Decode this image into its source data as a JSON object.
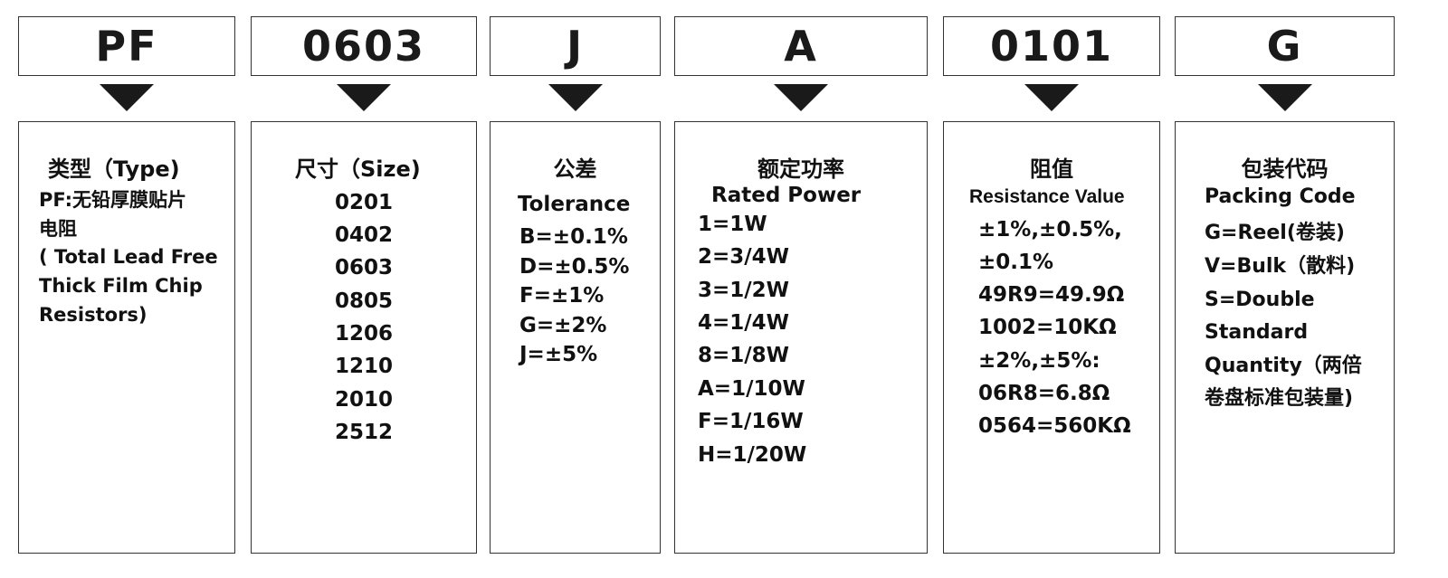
{
  "columns": [
    {
      "code": "PF",
      "title": "类型（Type)",
      "lines": [
        "PF:无铅厚膜贴片",
        "电阻",
        "( Total Lead Free",
        "Thick Film Chip",
        "Resistors)"
      ]
    },
    {
      "code": "0603",
      "title": "尺寸（Size)",
      "lines": [
        "0201",
        "0402",
        "0603",
        "0805",
        "1206",
        "1210",
        "2010",
        "2512"
      ]
    },
    {
      "code": "J",
      "title": "公差",
      "subtitle": "Tolerance",
      "lines": [
        "B=±0.1%",
        "D=±0.5%",
        "F=±1%",
        "G=±2%",
        "J=±5%"
      ]
    },
    {
      "code": "A",
      "title": "额定功率",
      "subtitle": "Rated Power",
      "lines": [
        "1=1W",
        "2=3/4W",
        "3=1/2W",
        "4=1/4W",
        "8=1/8W",
        "A=1/10W",
        "F=1/16W",
        "H=1/20W"
      ]
    },
    {
      "code": "0101",
      "title": "阻值",
      "subtitle": "Resistance Value",
      "lines": [
        "±1%,±0.5%,",
        "±0.1%",
        "49R9=49.9Ω",
        "1002=10KΩ",
        "±2%,±5%:",
        "06R8=6.8Ω",
        "0564=560KΩ"
      ]
    },
    {
      "code": "G",
      "title": "包装代码",
      "subtitle": "Packing Code",
      "lines": [
        "G=Reel(卷装)",
        "V=Bulk（散料)",
        "S=Double",
        "Standard",
        "Quantity（两倍",
        "卷盘标准包装量)"
      ]
    }
  ]
}
